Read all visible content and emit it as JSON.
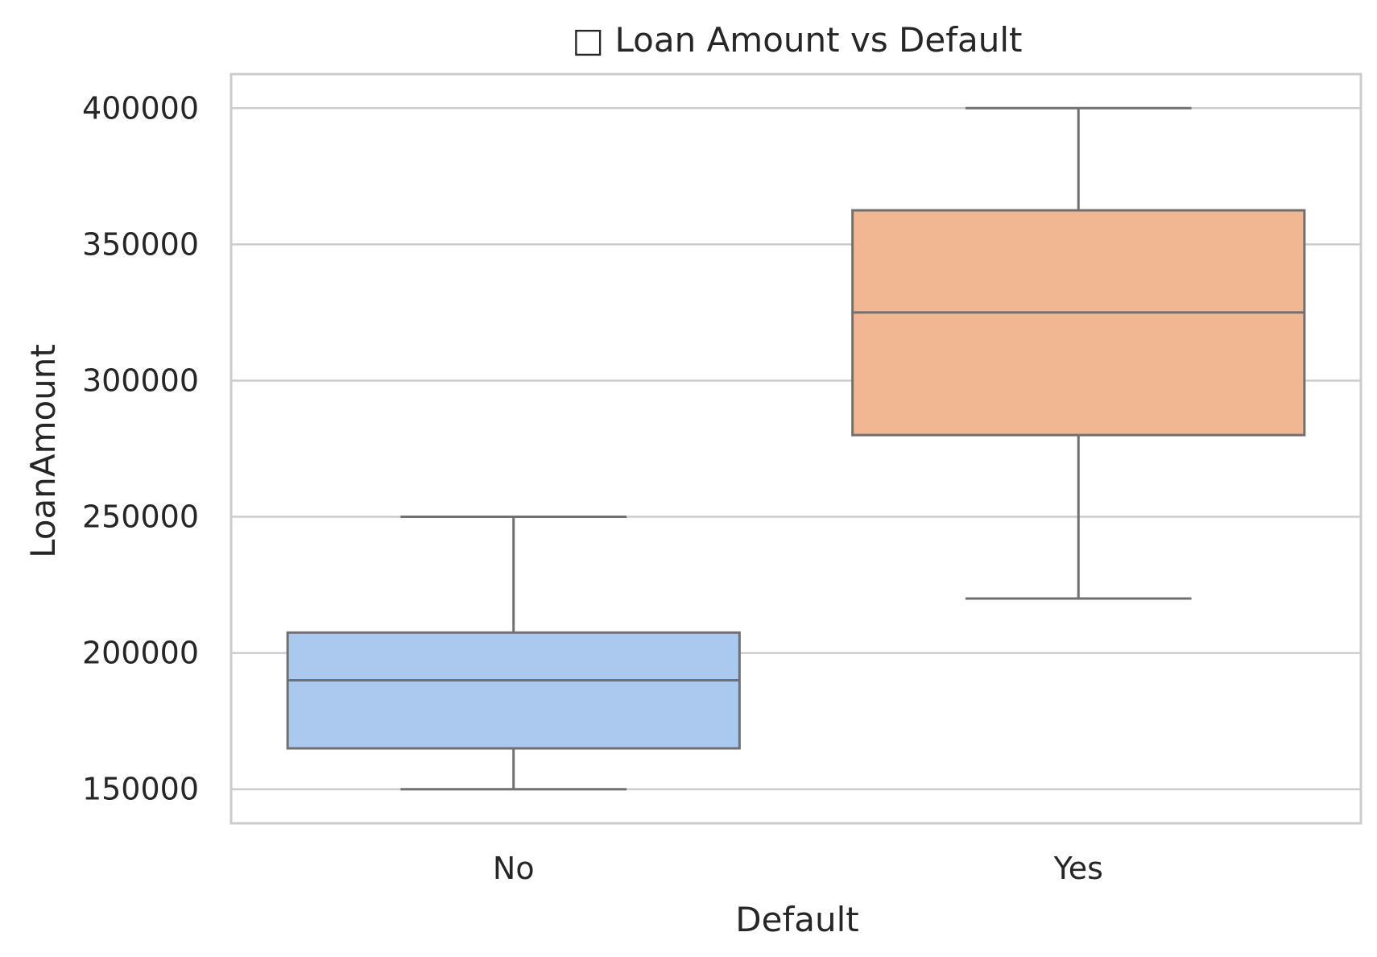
{
  "chart_data": {
    "type": "box",
    "title": "□ Loan Amount vs Default",
    "xlabel": "Default",
    "ylabel": "LoanAmount",
    "categories": [
      "No",
      "Yes"
    ],
    "boxes": [
      {
        "category": "No",
        "min": 150000,
        "q1": 165000,
        "median": 190000,
        "q3": 207500,
        "max": 250000
      },
      {
        "category": "Yes",
        "min": 220000,
        "q1": 280000,
        "median": 325000,
        "q3": 362500,
        "max": 400000
      }
    ],
    "yticks": [
      150000,
      200000,
      250000,
      300000,
      350000,
      400000
    ],
    "ytick_labels": [
      "150000",
      "200000",
      "250000",
      "300000",
      "350000",
      "400000"
    ],
    "ylim": [
      137500,
      412500
    ],
    "grid": true,
    "colors": {
      "boxes": [
        "#abc9ee",
        "#f1b793"
      ],
      "edge": "#707070",
      "grid": "#cccccc",
      "spine": "#cccccc"
    }
  }
}
